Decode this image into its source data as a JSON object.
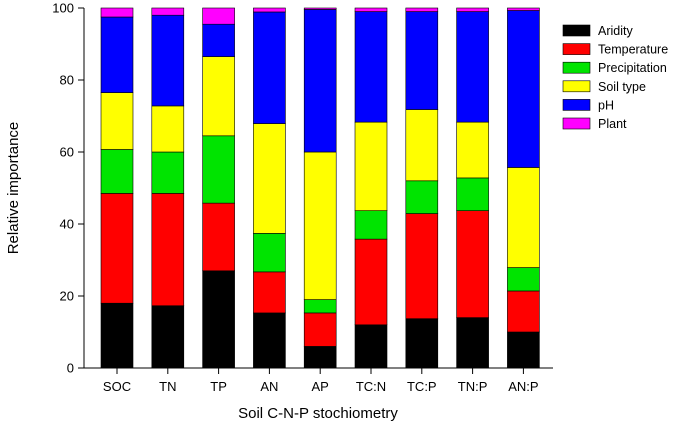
{
  "chart_data": {
    "type": "bar",
    "stacked": true,
    "title": "",
    "xlabel": "Soil C-N-P stochiometry",
    "ylabel": "Relative importance",
    "ylim": [
      0,
      100
    ],
    "yticks": [
      0,
      20,
      40,
      60,
      80,
      100
    ],
    "grid": false,
    "legend_position": "top-right",
    "categories": [
      "SOC",
      "TN",
      "TP",
      "AN",
      "AP",
      "TC:N",
      "TC:P",
      "TN:P",
      "AN:P"
    ],
    "series": [
      {
        "name": "Aridity",
        "color": "#000000",
        "values": [
          18.0,
          17.3,
          27.0,
          15.3,
          6.0,
          12.0,
          13.7,
          14.0,
          10.0
        ]
      },
      {
        "name": "Temperature",
        "color": "#ff0000",
        "values": [
          30.5,
          31.2,
          18.8,
          11.4,
          9.3,
          23.8,
          29.2,
          29.7,
          11.4
        ]
      },
      {
        "name": "Precipitation",
        "color": "#00e400",
        "values": [
          12.2,
          11.5,
          18.7,
          10.7,
          3.7,
          7.9,
          9.1,
          9.1,
          6.5
        ]
      },
      {
        "name": "Soil type",
        "color": "#ffff00",
        "values": [
          15.8,
          12.8,
          22.0,
          30.5,
          41.0,
          24.6,
          19.8,
          15.5,
          27.8
        ]
      },
      {
        "name": "pH",
        "color": "#0000ff",
        "values": [
          21.0,
          25.2,
          9.0,
          31.0,
          39.6,
          30.7,
          27.2,
          30.7,
          43.6
        ]
      },
      {
        "name": "Plant",
        "color": "#ff00ff",
        "values": [
          2.5,
          2.0,
          4.5,
          1.1,
          0.4,
          1.0,
          1.0,
          1.0,
          0.7
        ]
      }
    ]
  }
}
